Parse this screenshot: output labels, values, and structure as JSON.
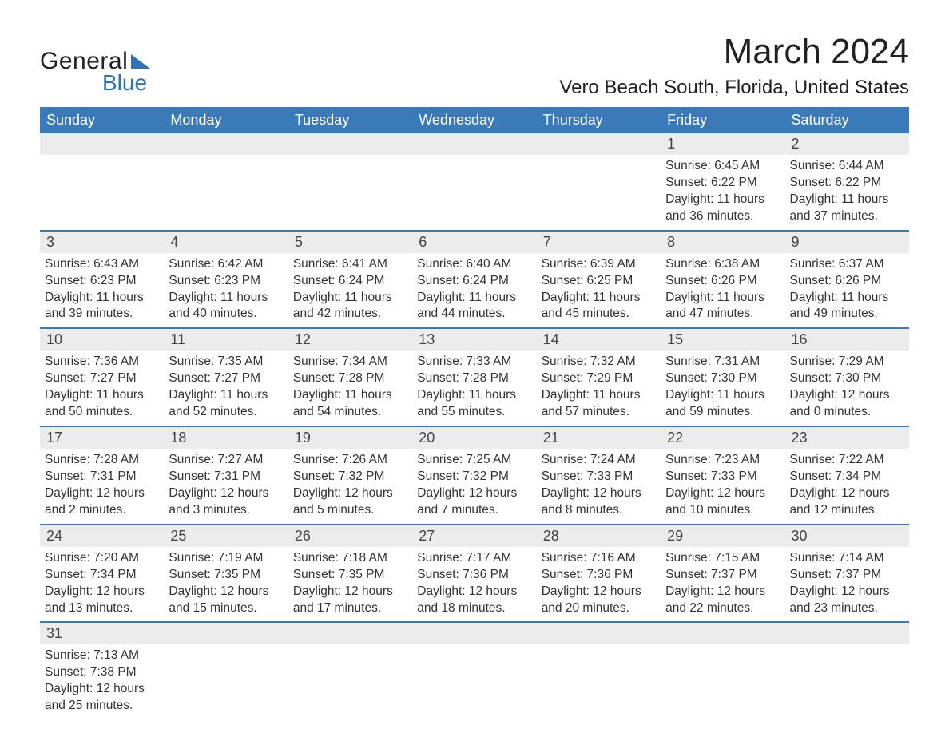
{
  "brand": {
    "general": "General",
    "blue": "Blue"
  },
  "title": "March 2024",
  "location": "Vero Beach South, Florida, United States",
  "colors": {
    "header_bg": "#3a7ab8",
    "header_text": "#ffffff",
    "daynum_bg": "#ececec",
    "row_divider": "#3a7ab8",
    "brand_blue": "#2f72b6",
    "body_text": "#333333",
    "background": "#ffffff"
  },
  "layout": {
    "columns": 7,
    "rows": 6,
    "week_start": "Sunday"
  },
  "weekdays": [
    "Sunday",
    "Monday",
    "Tuesday",
    "Wednesday",
    "Thursday",
    "Friday",
    "Saturday"
  ],
  "typography": {
    "title_fontsize": 44,
    "location_fontsize": 24,
    "weekday_fontsize": 18,
    "daynum_fontsize": 18,
    "body_fontsize": 15.5,
    "font_family": "Arial"
  },
  "weeks": [
    [
      {
        "day": null
      },
      {
        "day": null
      },
      {
        "day": null
      },
      {
        "day": null
      },
      {
        "day": null
      },
      {
        "day": 1,
        "sunrise": "6:45 AM",
        "sunset": "6:22 PM",
        "daylight1": "Daylight: 11 hours",
        "daylight2": "and 36 minutes."
      },
      {
        "day": 2,
        "sunrise": "6:44 AM",
        "sunset": "6:22 PM",
        "daylight1": "Daylight: 11 hours",
        "daylight2": "and 37 minutes."
      }
    ],
    [
      {
        "day": 3,
        "sunrise": "6:43 AM",
        "sunset": "6:23 PM",
        "daylight1": "Daylight: 11 hours",
        "daylight2": "and 39 minutes."
      },
      {
        "day": 4,
        "sunrise": "6:42 AM",
        "sunset": "6:23 PM",
        "daylight1": "Daylight: 11 hours",
        "daylight2": "and 40 minutes."
      },
      {
        "day": 5,
        "sunrise": "6:41 AM",
        "sunset": "6:24 PM",
        "daylight1": "Daylight: 11 hours",
        "daylight2": "and 42 minutes."
      },
      {
        "day": 6,
        "sunrise": "6:40 AM",
        "sunset": "6:24 PM",
        "daylight1": "Daylight: 11 hours",
        "daylight2": "and 44 minutes."
      },
      {
        "day": 7,
        "sunrise": "6:39 AM",
        "sunset": "6:25 PM",
        "daylight1": "Daylight: 11 hours",
        "daylight2": "and 45 minutes."
      },
      {
        "day": 8,
        "sunrise": "6:38 AM",
        "sunset": "6:26 PM",
        "daylight1": "Daylight: 11 hours",
        "daylight2": "and 47 minutes."
      },
      {
        "day": 9,
        "sunrise": "6:37 AM",
        "sunset": "6:26 PM",
        "daylight1": "Daylight: 11 hours",
        "daylight2": "and 49 minutes."
      }
    ],
    [
      {
        "day": 10,
        "sunrise": "7:36 AM",
        "sunset": "7:27 PM",
        "daylight1": "Daylight: 11 hours",
        "daylight2": "and 50 minutes."
      },
      {
        "day": 11,
        "sunrise": "7:35 AM",
        "sunset": "7:27 PM",
        "daylight1": "Daylight: 11 hours",
        "daylight2": "and 52 minutes."
      },
      {
        "day": 12,
        "sunrise": "7:34 AM",
        "sunset": "7:28 PM",
        "daylight1": "Daylight: 11 hours",
        "daylight2": "and 54 minutes."
      },
      {
        "day": 13,
        "sunrise": "7:33 AM",
        "sunset": "7:28 PM",
        "daylight1": "Daylight: 11 hours",
        "daylight2": "and 55 minutes."
      },
      {
        "day": 14,
        "sunrise": "7:32 AM",
        "sunset": "7:29 PM",
        "daylight1": "Daylight: 11 hours",
        "daylight2": "and 57 minutes."
      },
      {
        "day": 15,
        "sunrise": "7:31 AM",
        "sunset": "7:30 PM",
        "daylight1": "Daylight: 11 hours",
        "daylight2": "and 59 minutes."
      },
      {
        "day": 16,
        "sunrise": "7:29 AM",
        "sunset": "7:30 PM",
        "daylight1": "Daylight: 12 hours",
        "daylight2": "and 0 minutes."
      }
    ],
    [
      {
        "day": 17,
        "sunrise": "7:28 AM",
        "sunset": "7:31 PM",
        "daylight1": "Daylight: 12 hours",
        "daylight2": "and 2 minutes."
      },
      {
        "day": 18,
        "sunrise": "7:27 AM",
        "sunset": "7:31 PM",
        "daylight1": "Daylight: 12 hours",
        "daylight2": "and 3 minutes."
      },
      {
        "day": 19,
        "sunrise": "7:26 AM",
        "sunset": "7:32 PM",
        "daylight1": "Daylight: 12 hours",
        "daylight2": "and 5 minutes."
      },
      {
        "day": 20,
        "sunrise": "7:25 AM",
        "sunset": "7:32 PM",
        "daylight1": "Daylight: 12 hours",
        "daylight2": "and 7 minutes."
      },
      {
        "day": 21,
        "sunrise": "7:24 AM",
        "sunset": "7:33 PM",
        "daylight1": "Daylight: 12 hours",
        "daylight2": "and 8 minutes."
      },
      {
        "day": 22,
        "sunrise": "7:23 AM",
        "sunset": "7:33 PM",
        "daylight1": "Daylight: 12 hours",
        "daylight2": "and 10 minutes."
      },
      {
        "day": 23,
        "sunrise": "7:22 AM",
        "sunset": "7:34 PM",
        "daylight1": "Daylight: 12 hours",
        "daylight2": "and 12 minutes."
      }
    ],
    [
      {
        "day": 24,
        "sunrise": "7:20 AM",
        "sunset": "7:34 PM",
        "daylight1": "Daylight: 12 hours",
        "daylight2": "and 13 minutes."
      },
      {
        "day": 25,
        "sunrise": "7:19 AM",
        "sunset": "7:35 PM",
        "daylight1": "Daylight: 12 hours",
        "daylight2": "and 15 minutes."
      },
      {
        "day": 26,
        "sunrise": "7:18 AM",
        "sunset": "7:35 PM",
        "daylight1": "Daylight: 12 hours",
        "daylight2": "and 17 minutes."
      },
      {
        "day": 27,
        "sunrise": "7:17 AM",
        "sunset": "7:36 PM",
        "daylight1": "Daylight: 12 hours",
        "daylight2": "and 18 minutes."
      },
      {
        "day": 28,
        "sunrise": "7:16 AM",
        "sunset": "7:36 PM",
        "daylight1": "Daylight: 12 hours",
        "daylight2": "and 20 minutes."
      },
      {
        "day": 29,
        "sunrise": "7:15 AM",
        "sunset": "7:37 PM",
        "daylight1": "Daylight: 12 hours",
        "daylight2": "and 22 minutes."
      },
      {
        "day": 30,
        "sunrise": "7:14 AM",
        "sunset": "7:37 PM",
        "daylight1": "Daylight: 12 hours",
        "daylight2": "and 23 minutes."
      }
    ],
    [
      {
        "day": 31,
        "sunrise": "7:13 AM",
        "sunset": "7:38 PM",
        "daylight1": "Daylight: 12 hours",
        "daylight2": "and 25 minutes."
      },
      {
        "day": null
      },
      {
        "day": null
      },
      {
        "day": null
      },
      {
        "day": null
      },
      {
        "day": null
      },
      {
        "day": null
      }
    ]
  ],
  "labels": {
    "sunrise_prefix": "Sunrise: ",
    "sunset_prefix": "Sunset: "
  }
}
